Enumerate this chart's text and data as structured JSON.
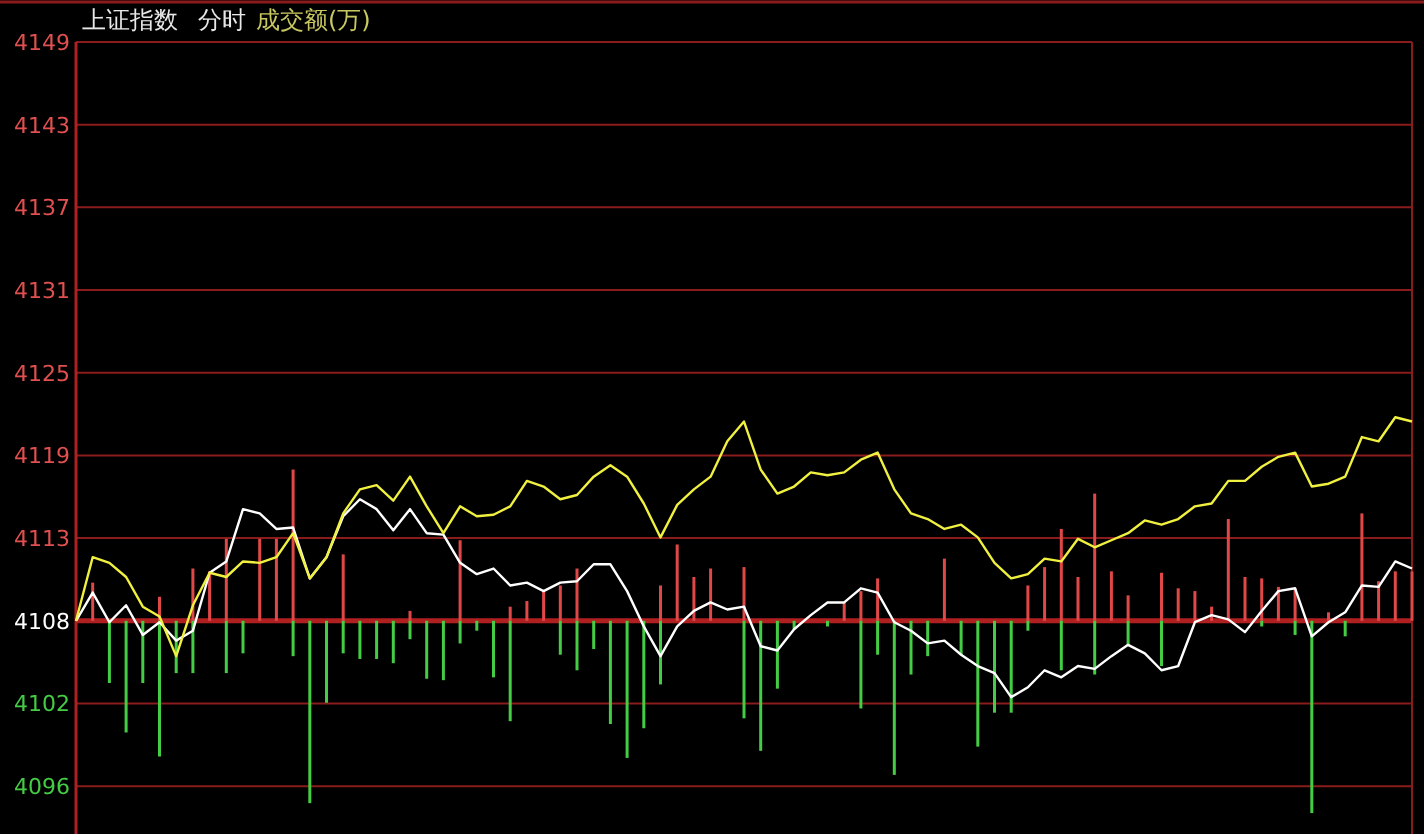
{
  "chart_data": {
    "type": "line",
    "title": "上证指数",
    "subtitle": "分时",
    "annotations": [
      "成交额(万)"
    ],
    "categories": [
      null,
      null,
      null,
      null,
      null,
      null,
      null,
      null,
      null,
      null,
      null,
      null,
      null,
      null,
      null,
      null,
      null,
      null,
      null,
      null,
      null,
      null,
      null,
      null,
      null,
      null,
      null,
      null,
      null,
      null,
      null,
      null,
      null,
      null,
      null,
      null,
      null,
      null,
      null,
      null,
      null,
      null,
      null,
      null,
      null,
      null,
      null,
      null,
      null,
      null,
      null,
      null,
      null,
      null,
      null,
      null,
      null,
      null,
      null,
      null,
      null,
      null,
      null,
      null,
      null,
      null,
      null,
      null,
      null,
      null,
      null,
      null,
      null,
      null,
      null,
      null,
      null,
      null,
      null,
      null,
      null
    ],
    "ylim": [
      4092.8,
      4148.55
    ],
    "yticks": [
      {
        "value": 4095.9,
        "label": "4096"
      },
      {
        "value": 4101.75,
        "label": "4102"
      },
      {
        "value": 4107.6,
        "label": "4108"
      },
      {
        "value": 4113.45,
        "label": "4113"
      },
      {
        "value": 4119.3,
        "label": "4119"
      },
      {
        "value": 4125.15,
        "label": "4125"
      },
      {
        "value": 4131.0,
        "label": "4131"
      },
      {
        "value": 4136.85,
        "label": "4137"
      },
      {
        "value": 4142.7,
        "label": "4143"
      },
      {
        "value": 4148.55,
        "label": "4149"
      }
    ],
    "grid": "y",
    "tick_labels": "y",
    "ref_lines": [
      {
        "axis": "y",
        "value": 4107.6,
        "color": "#b02020"
      }
    ],
    "series": [
      {
        "type": "bar",
        "color": "#e04848",
        "base": [
          null,
          4107.6,
          null,
          null,
          null,
          4107.6,
          null,
          4107.6,
          4107.6,
          4107.6,
          null,
          4107.6,
          4107.6,
          4107.6,
          null,
          null,
          4107.6,
          null,
          null,
          null,
          4107.6,
          null,
          null,
          4107.6,
          null,
          null,
          4107.6,
          4107.6,
          4107.6,
          4107.6,
          4107.6,
          null,
          null,
          null,
          null,
          4107.6,
          4107.6,
          4107.6,
          4107.6,
          null,
          4107.6,
          null,
          null,
          null,
          null,
          null,
          4107.6,
          4107.6,
          4107.6,
          null,
          null,
          null,
          4107.6,
          null,
          null,
          null,
          null,
          4107.6,
          4107.6,
          4107.6,
          4107.6,
          4107.6,
          4107.6,
          4107.6,
          null,
          4107.6,
          4107.6,
          4107.6,
          4107.6,
          4107.6,
          4107.6,
          4107.6,
          4107.6,
          4107.6,
          null,
          4107.6,
          null,
          4107.6,
          4107.6,
          4107.6,
          4107.6
        ],
        "values": [
          null,
          2.7,
          null,
          null,
          null,
          1.7,
          null,
          3.7,
          3.5,
          5.8,
          null,
          5.8,
          5.8,
          10.7,
          null,
          null,
          4.7,
          null,
          null,
          null,
          0.7,
          null,
          null,
          5.7,
          null,
          null,
          1.0,
          1.4,
          2.1,
          2.5,
          3.7,
          null,
          null,
          null,
          null,
          2.5,
          5.4,
          3.1,
          3.7,
          null,
          3.8,
          null,
          null,
          null,
          null,
          null,
          1.3,
          2.1,
          3.0,
          null,
          null,
          null,
          4.4,
          null,
          null,
          null,
          null,
          2.5,
          3.8,
          6.5,
          3.1,
          9.0,
          3.5,
          1.8,
          null,
          3.4,
          2.3,
          2.1,
          1.0,
          7.2,
          3.1,
          3.0,
          2.4,
          2.3,
          null,
          0.6,
          null,
          7.6,
          2.8,
          3.5,
          3.5
        ]
      },
      {
        "type": "bar",
        "color": "#44cc44",
        "base": [
          null,
          null,
          4107.6,
          4107.6,
          4107.6,
          4107.6,
          4107.6,
          4107.6,
          null,
          4107.6,
          4107.6,
          null,
          null,
          4107.6,
          4107.6,
          4107.6,
          4107.6,
          4107.6,
          4107.6,
          4107.6,
          4107.6,
          4107.6,
          4107.6,
          4107.6,
          4107.6,
          4107.6,
          4107.6,
          null,
          null,
          4107.6,
          4107.6,
          4107.6,
          4107.6,
          4107.6,
          4107.6,
          4107.6,
          null,
          null,
          null,
          null,
          4107.6,
          4107.6,
          4107.6,
          4107.6,
          null,
          4107.6,
          null,
          4107.6,
          4107.6,
          4107.6,
          4107.6,
          4107.6,
          null,
          4107.6,
          4107.6,
          4107.6,
          4107.6,
          4107.6,
          null,
          4107.6,
          null,
          4107.6,
          null,
          4107.6,
          null,
          4107.6,
          null,
          null,
          null,
          null,
          null,
          4107.6,
          null,
          4107.6,
          4107.6,
          null,
          4107.6,
          null,
          null,
          null,
          null
        ],
        "values": [
          null,
          null,
          -4.4,
          -7.9,
          -4.4,
          -9.6,
          -3.7,
          -3.7,
          null,
          -3.7,
          -2.3,
          null,
          null,
          -2.5,
          -12.9,
          -5.8,
          -2.3,
          -2.7,
          -2.7,
          -3.0,
          -1.3,
          -4.1,
          -4.2,
          -1.6,
          -0.7,
          -4.0,
          -7.1,
          null,
          null,
          -2.4,
          -3.5,
          -2.0,
          -7.3,
          -9.7,
          -7.6,
          -4.5,
          null,
          null,
          null,
          null,
          -6.9,
          -9.2,
          -4.8,
          -0.6,
          null,
          -0.4,
          null,
          -6.2,
          -2.4,
          -10.9,
          -3.8,
          -2.5,
          null,
          -2.4,
          -8.9,
          -6.5,
          -6.5,
          -0.7,
          null,
          -3.5,
          null,
          -3.8,
          null,
          -1.8,
          null,
          -3.2,
          null,
          null,
          null,
          null,
          null,
          -0.4,
          null,
          -1.0,
          -13.6,
          null,
          -1.1,
          null,
          null,
          null,
          null
        ]
      },
      {
        "color": "#ffffff",
        "values": [
          4107.6,
          4109.6,
          4107.5,
          4108.7,
          4106.6,
          4107.5,
          4106.2,
          4106.9,
          4111.0,
          4111.8,
          4115.5,
          4115.2,
          4114.1,
          4114.2,
          4110.6,
          4112.1,
          4115.0,
          4116.2,
          4115.5,
          4114.0,
          4115.5,
          4113.8,
          4113.7,
          4111.7,
          4110.9,
          4111.3,
          4110.1,
          4110.3,
          4109.7,
          4110.3,
          4110.4,
          4111.6,
          4111.6,
          4109.7,
          4107.2,
          4105.1,
          4107.2,
          4108.3,
          4108.9,
          4108.4,
          4108.6,
          4105.8,
          4105.5,
          4107.0,
          4108.0,
          4108.9,
          4108.9,
          4109.9,
          4109.6,
          4107.5,
          4106.9,
          4106.0,
          4106.2,
          4105.2,
          4104.4,
          4103.9,
          4102.2,
          4102.9,
          4104.1,
          4103.6,
          4104.4,
          4104.2,
          4105.1,
          4105.9,
          4105.3,
          4104.1,
          4104.4,
          4107.5,
          4108.0,
          4107.7,
          4106.8,
          4108.3,
          4109.7,
          4109.9,
          4106.5,
          4107.5,
          4108.2,
          4110.1,
          4110.0,
          4111.8,
          4111.3
        ]
      },
      {
        "color": "#f0f040",
        "values": [
          4107.6,
          4112.1,
          4111.7,
          4110.7,
          4108.6,
          4107.9,
          4105.1,
          4108.7,
          4111.0,
          4110.7,
          4111.8,
          4111.7,
          4112.1,
          4113.8,
          4110.6,
          4112.1,
          4115.2,
          4116.9,
          4117.2,
          4116.1,
          4117.8,
          4115.7,
          4113.8,
          4115.7,
          4115.0,
          4115.1,
          4115.7,
          4117.5,
          4117.1,
          4116.2,
          4116.5,
          4117.8,
          4118.6,
          4117.8,
          4115.9,
          4113.5,
          4115.8,
          4116.9,
          4117.8,
          4120.3,
          4121.7,
          4118.3,
          4116.6,
          4117.1,
          4118.1,
          4117.9,
          4118.1,
          4119.0,
          4119.5,
          4116.9,
          4115.2,
          4114.8,
          4114.1,
          4114.4,
          4113.5,
          4111.7,
          4110.6,
          4110.9,
          4112.0,
          4111.8,
          4113.4,
          4112.8,
          4113.3,
          4113.8,
          4114.7,
          4114.4,
          4114.8,
          4115.7,
          4115.9,
          4117.5,
          4117.5,
          4118.5,
          4119.2,
          4119.5,
          4117.1,
          4117.3,
          4117.8,
          4120.6,
          4120.3,
          4122.0,
          4121.7
        ]
      }
    ]
  }
}
